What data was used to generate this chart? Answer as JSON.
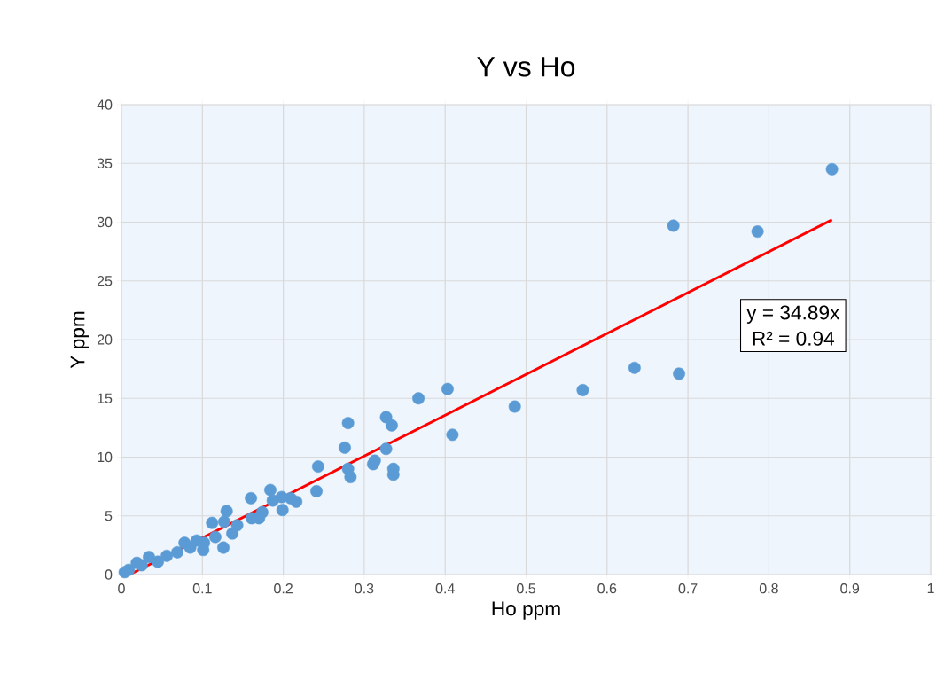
{
  "chart_data": {
    "type": "scatter",
    "title": "Y vs Ho",
    "xlabel": "Ho ppm",
    "ylabel": "Y ppm",
    "xlim": [
      0,
      1
    ],
    "ylim": [
      0,
      40
    ],
    "xticks": [
      0,
      0.1,
      0.2,
      0.3,
      0.4,
      0.5,
      0.6,
      0.7,
      0.8,
      0.9,
      1
    ],
    "yticks": [
      0,
      5,
      10,
      15,
      20,
      25,
      30,
      35,
      40
    ],
    "grid": true,
    "series": [
      {
        "color": "#5b9bd5",
        "marker": "circle",
        "x": [
          0.878,
          0.682,
          0.786,
          0.634,
          0.689,
          0.57,
          0.486,
          0.403,
          0.367,
          0.409,
          0.327,
          0.334,
          0.28,
          0.276,
          0.327,
          0.28,
          0.283,
          0.313,
          0.311,
          0.336,
          0.336,
          0.243,
          0.241,
          0.184,
          0.216,
          0.209,
          0.198,
          0.187,
          0.199,
          0.16,
          0.161,
          0.17,
          0.174,
          0.13,
          0.127,
          0.112,
          0.137,
          0.143,
          0.116,
          0.126,
          0.101,
          0.093,
          0.078,
          0.069,
          0.056,
          0.034,
          0.019,
          0.009,
          0.004,
          0.045,
          0.025,
          0.102,
          0.085
        ],
        "values": [
          34.5,
          29.7,
          29.2,
          17.6,
          17.1,
          15.7,
          14.3,
          15.8,
          15.0,
          11.9,
          13.4,
          12.7,
          12.9,
          10.8,
          10.7,
          9.0,
          8.3,
          9.7,
          9.4,
          9.0,
          8.5,
          9.2,
          7.1,
          7.2,
          6.2,
          6.5,
          6.6,
          6.3,
          5.5,
          6.5,
          4.8,
          4.8,
          5.3,
          5.4,
          4.5,
          4.4,
          3.5,
          4.2,
          3.2,
          2.3,
          2.1,
          2.9,
          2.7,
          1.9,
          1.6,
          1.5,
          1.0,
          0.4,
          0.2,
          1.1,
          0.8,
          2.7,
          2.3
        ]
      },
      {
        "type": "line",
        "color": "#ff0000",
        "marker": "none",
        "line_style": "solid",
        "x": [
          0.01,
          0.878
        ],
        "values": [
          0,
          30.2
        ]
      }
    ],
    "annotations": [
      "y = 34.89x",
      "R² = 0.94"
    ]
  }
}
